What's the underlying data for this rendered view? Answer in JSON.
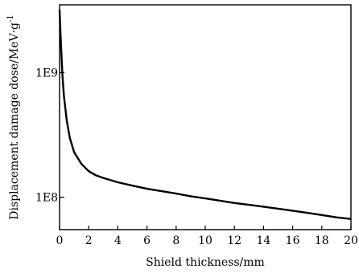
{
  "chart_data": {
    "type": "line",
    "xlabel": "Shield thickness/mm",
    "ylabel": "Displacement damage dose/MeV·g",
    "ylabel_superscript": "-1",
    "xlim": [
      0,
      20
    ],
    "ylim": [
      55000000,
      3500000000
    ],
    "yscale": "log",
    "grid": false,
    "x_ticks": [
      0,
      2,
      4,
      6,
      8,
      10,
      12,
      14,
      16,
      18,
      20
    ],
    "x_tick_labels": [
      "0",
      "2",
      "4",
      "6",
      "8",
      "10",
      "12",
      "14",
      "16",
      "18",
      "20"
    ],
    "y_ticks": [
      100000000,
      1000000000
    ],
    "y_tick_labels": [
      "1E8",
      "1E9"
    ],
    "series": [
      {
        "x": [
          0.0,
          0.1,
          0.2,
          0.3,
          0.5,
          0.7,
          1.0,
          1.5,
          2.0,
          2.5,
          3.0,
          4.0,
          5.0,
          6.0,
          7.0,
          8.0,
          9.0,
          10.0,
          11.0,
          12.0,
          13.0,
          14.0,
          15.0,
          16.0,
          17.0,
          18.0,
          19.0,
          20.0
        ],
        "y": [
          3200000000,
          1650000000,
          950000000,
          650000000,
          410000000,
          300000000,
          230000000,
          185000000,
          162000000,
          150000000,
          143000000,
          132000000,
          124000000,
          117000000,
          112000000,
          107000000,
          102000000,
          98000000,
          94000000,
          90000000,
          87000000,
          84000000,
          81000000,
          78000000,
          75000000,
          72000000,
          69000000,
          67000000
        ]
      }
    ]
  }
}
